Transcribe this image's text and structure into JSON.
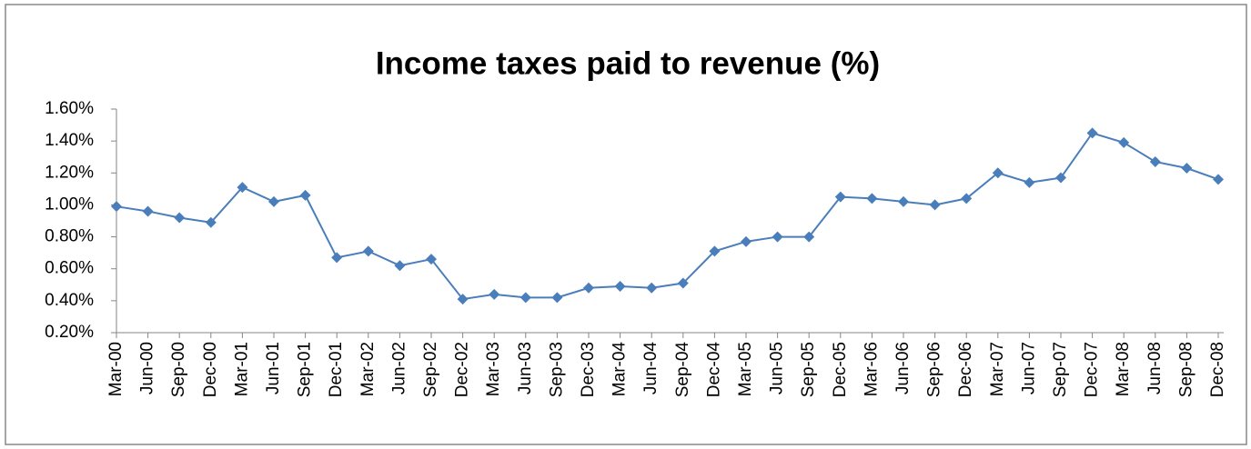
{
  "chart_data": {
    "type": "line",
    "title": "Income taxes paid to revenue (%)",
    "categories": [
      "Mar-00",
      "Jun-00",
      "Sep-00",
      "Dec-00",
      "Mar-01",
      "Jun-01",
      "Sep-01",
      "Dec-01",
      "Mar-02",
      "Jun-02",
      "Sep-02",
      "Dec-02",
      "Mar-03",
      "Jun-03",
      "Sep-03",
      "Dec-03",
      "Mar-04",
      "Jun-04",
      "Sep-04",
      "Dec-04",
      "Mar-05",
      "Jun-05",
      "Sep-05",
      "Dec-05",
      "Mar-06",
      "Jun-06",
      "Sep-06",
      "Dec-06",
      "Mar-07",
      "Jun-07",
      "Sep-07",
      "Dec-07",
      "Mar-08",
      "Jun-08",
      "Sep-08",
      "Dec-08"
    ],
    "values": [
      0.99,
      0.96,
      0.92,
      0.89,
      1.11,
      1.02,
      1.06,
      0.67,
      0.71,
      0.62,
      0.66,
      0.41,
      0.44,
      0.42,
      0.42,
      0.48,
      0.49,
      0.48,
      0.51,
      0.71,
      0.77,
      0.8,
      0.8,
      1.05,
      1.04,
      1.02,
      1.0,
      1.04,
      1.2,
      1.14,
      1.17,
      1.45,
      1.39,
      1.27,
      1.23,
      1.16
    ],
    "color": "#4a7ebb",
    "ylim": [
      0.2,
      1.6
    ],
    "yticks": [
      {
        "value": 0.2,
        "label": "0.20%"
      },
      {
        "value": 0.4,
        "label": "0.40%"
      },
      {
        "value": 0.6,
        "label": "0.60%"
      },
      {
        "value": 0.8,
        "label": "0.80%"
      },
      {
        "value": 1.0,
        "label": "1.00%"
      },
      {
        "value": 1.2,
        "label": "1.20%"
      },
      {
        "value": 1.4,
        "label": "1.40%"
      },
      {
        "value": 1.6,
        "label": "1.60%"
      }
    ],
    "grid": false
  }
}
